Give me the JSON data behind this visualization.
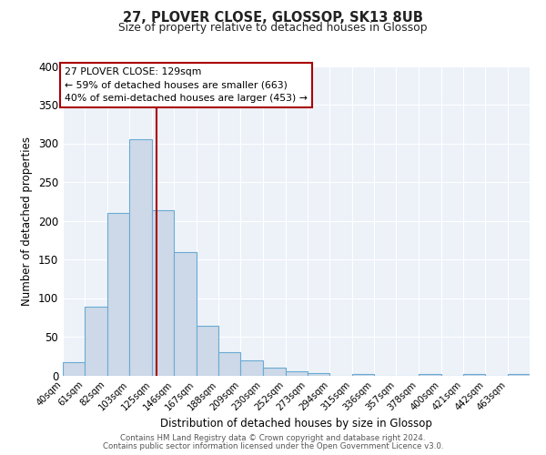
{
  "title": "27, PLOVER CLOSE, GLOSSOP, SK13 8UB",
  "subtitle": "Size of property relative to detached houses in Glossop",
  "xlabel": "Distribution of detached houses by size in Glossop",
  "ylabel": "Number of detached properties",
  "bar_color": "#cdd9e8",
  "bar_edge_color": "#6aaad4",
  "background_color": "#edf2f9",
  "grid_color": "#ffffff",
  "bin_edges": [
    40,
    61,
    82,
    103,
    125,
    146,
    167,
    188,
    209,
    230,
    252,
    273,
    294,
    315,
    336,
    357,
    378,
    400,
    421,
    442,
    463,
    484
  ],
  "bin_labels": [
    "40sqm",
    "61sqm",
    "82sqm",
    "103sqm",
    "125sqm",
    "146sqm",
    "167sqm",
    "188sqm",
    "209sqm",
    "230sqm",
    "252sqm",
    "273sqm",
    "294sqm",
    "315sqm",
    "336sqm",
    "357sqm",
    "378sqm",
    "400sqm",
    "421sqm",
    "442sqm",
    "463sqm"
  ],
  "counts": [
    17,
    89,
    210,
    305,
    213,
    160,
    64,
    30,
    20,
    10,
    5,
    3,
    0,
    2,
    0,
    0,
    2,
    0,
    2,
    0,
    2
  ],
  "property_size": 129,
  "vline_color": "#aa0000",
  "annotation_title": "27 PLOVER CLOSE: 129sqm",
  "annotation_line1": "← 59% of detached houses are smaller (663)",
  "annotation_line2": "40% of semi-detached houses are larger (453) →",
  "ylim": [
    0,
    400
  ],
  "yticks": [
    0,
    50,
    100,
    150,
    200,
    250,
    300,
    350,
    400
  ],
  "footer1": "Contains HM Land Registry data © Crown copyright and database right 2024.",
  "footer2": "Contains public sector information licensed under the Open Government Licence v3.0."
}
